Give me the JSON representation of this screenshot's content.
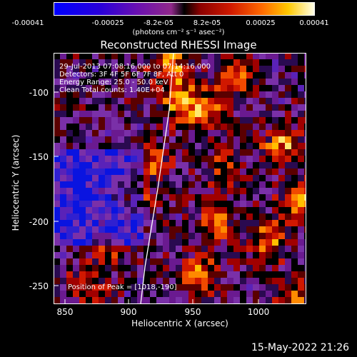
{
  "colorbar": {
    "ticks": [
      "-0.00041",
      "-0.00025",
      "-8.2e-05",
      "8.2e-05",
      "0.00025",
      "0.00041"
    ],
    "units": "(photons cm⁻² s⁻¹ asec⁻²)"
  },
  "plot": {
    "title": "Reconstructed RHESSI Image",
    "info_lines": [
      "29-Jul-2013 07:08:16.000 to 07:14:16.000",
      "Detectors: 3F 4F 5F 6F 7F 8F, Att 0",
      "Energy Range: 25.0 - 50.0 keV",
      "Clean    Total counts: 1.40E+04"
    ],
    "peak_label": "Position of Peak = [1018,-190]"
  },
  "axes": {
    "x_label": "Heliocentric X (arcsec)",
    "y_label": "Heliocentric Y (arcsec)",
    "x_ticks": [
      "850",
      "900",
      "950",
      "1000"
    ],
    "y_ticks": [
      "-100",
      "-150",
      "-200",
      "-250"
    ]
  },
  "footer": {
    "timestamp": "15-May-2022 21:26"
  }
}
